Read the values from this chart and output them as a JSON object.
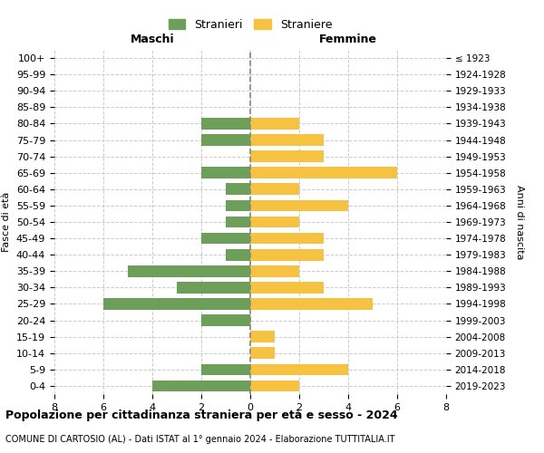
{
  "age_groups": [
    "0-4",
    "5-9",
    "10-14",
    "15-19",
    "20-24",
    "25-29",
    "30-34",
    "35-39",
    "40-44",
    "45-49",
    "50-54",
    "55-59",
    "60-64",
    "65-69",
    "70-74",
    "75-79",
    "80-84",
    "85-89",
    "90-94",
    "95-99",
    "100+"
  ],
  "birth_years": [
    "2019-2023",
    "2014-2018",
    "2009-2013",
    "2004-2008",
    "1999-2003",
    "1994-1998",
    "1989-1993",
    "1984-1988",
    "1979-1983",
    "1974-1978",
    "1969-1973",
    "1964-1968",
    "1959-1963",
    "1954-1958",
    "1949-1953",
    "1944-1948",
    "1939-1943",
    "1934-1938",
    "1929-1933",
    "1924-1928",
    "≤ 1923"
  ],
  "maschi": [
    4,
    2,
    0,
    0,
    2,
    6,
    3,
    5,
    1,
    2,
    1,
    1,
    1,
    2,
    0,
    2,
    2,
    0,
    0,
    0,
    0
  ],
  "femmine": [
    2,
    4,
    1,
    1,
    0,
    5,
    3,
    2,
    3,
    3,
    2,
    4,
    2,
    6,
    3,
    3,
    2,
    0,
    0,
    0,
    0
  ],
  "color_maschi": "#6d9e5a",
  "color_femmine": "#f5c242",
  "title_main": "Popolazione per cittadinanza straniera per età e sesso - 2024",
  "title_sub": "COMUNE DI CARTOSIO (AL) - Dati ISTAT al 1° gennaio 2024 - Elaborazione TUTTITALIA.IT",
  "legend_maschi": "Stranieri",
  "legend_femmine": "Straniere",
  "xlabel_left": "Maschi",
  "xlabel_right": "Femmine",
  "ylabel_left": "Fasce di età",
  "ylabel_right": "Anni di nascita",
  "xlim": 8,
  "bg_color": "#ffffff",
  "grid_color": "#cccccc"
}
